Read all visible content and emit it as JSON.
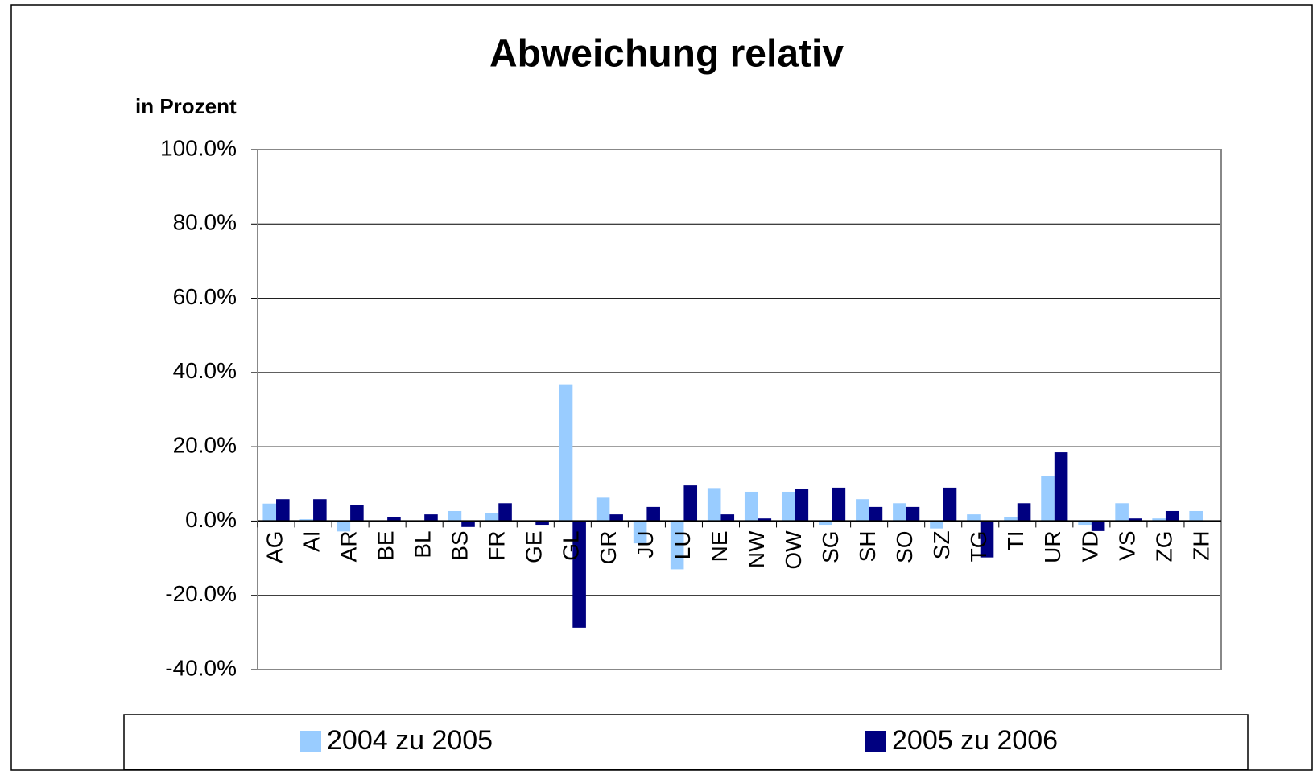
{
  "chart_data": {
    "type": "bar",
    "title": "Abweichung relativ",
    "y_axis_label": "in Prozent",
    "categories": [
      "AG",
      "AI",
      "AR",
      "BE",
      "BL",
      "BS",
      "FR",
      "GE",
      "GL",
      "GR",
      "JU",
      "LU",
      "NE",
      "NW",
      "OW",
      "SG",
      "SH",
      "SO",
      "SZ",
      "TG",
      "TI",
      "UR",
      "VD",
      "VS",
      "ZG",
      "ZH"
    ],
    "series": [
      {
        "name": "2004 zu 2005",
        "color": "#99ccff",
        "values": [
          4.7,
          0.5,
          -2.8,
          0,
          0,
          2.7,
          2.2,
          0,
          36.8,
          6.3,
          -6.0,
          -13.0,
          8.9,
          7.9,
          7.9,
          -1.0,
          5.9,
          4.8,
          -2.0,
          1.8,
          1.1,
          12.2,
          -1.0,
          4.8,
          0.7,
          2.7
        ]
      },
      {
        "name": "2005 zu 2006",
        "color": "#000080",
        "values": [
          5.9,
          5.9,
          4.3,
          1.0,
          1.8,
          -1.6,
          4.8,
          -1.0,
          -28.7,
          1.8,
          3.8,
          9.6,
          1.8,
          0.7,
          8.6,
          9.0,
          3.8,
          3.8,
          9.0,
          -9.8,
          4.8,
          18.5,
          -2.7,
          0.7,
          2.7,
          0
        ]
      }
    ],
    "ylim": [
      -40,
      100
    ],
    "yticks": [
      {
        "value": -40,
        "label": "-40.0%"
      },
      {
        "value": -20,
        "label": "-20.0%"
      },
      {
        "value": 0,
        "label": "0.0%"
      },
      {
        "value": 20,
        "label": "20.0%"
      },
      {
        "value": 40,
        "label": "40.0%"
      },
      {
        "value": 60,
        "label": "60.0%"
      },
      {
        "value": 80,
        "label": "80.0%"
      },
      {
        "value": 100,
        "label": "100.0%"
      }
    ],
    "grid": true,
    "legend": "bottom"
  }
}
